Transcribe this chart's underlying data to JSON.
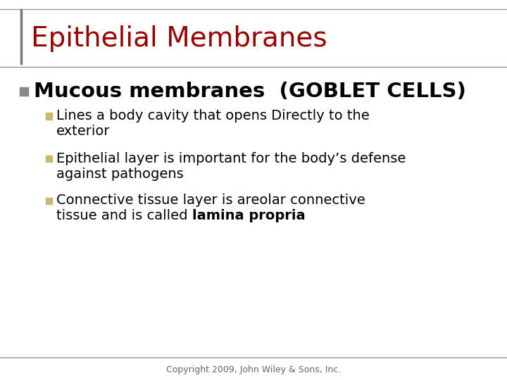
{
  "title": "Epithelial Membranes",
  "title_color": "#990000",
  "title_fontsize": 28,
  "bg_color": "#FFFFFF",
  "line_color": "#999999",
  "left_bar_color": "#777777",
  "bullet_level1": "Mucous membranes  (GOBLET CELLS)",
  "bullet_level1_color": "#000000",
  "bullet_level1_fontsize": 21,
  "bullet_square_color": "#888888",
  "sub_bullet_color": "#000000",
  "sub_bullet_fontsize": 14,
  "sub_square_color": "#C8B870",
  "sub_square_edge_color": "#C8B870",
  "sub_bullet1_line1": "Lines a body cavity that opens Directly to the",
  "sub_bullet1_line2": "exterior",
  "sub_bullet2_line1": "Epithelial layer is important for the body’s defense",
  "sub_bullet2_line2": "against pathogens",
  "sub_bullet3_line1": "Connective tissue layer is areolar connective",
  "sub_bullet3_line2_normal": "tissue and is called ",
  "sub_bullet3_line2_bold": "lamina propria",
  "copyright": "Copyright 2009, John Wiley & Sons, Inc.",
  "copyright_fontsize": 9,
  "copyright_color": "#666666"
}
